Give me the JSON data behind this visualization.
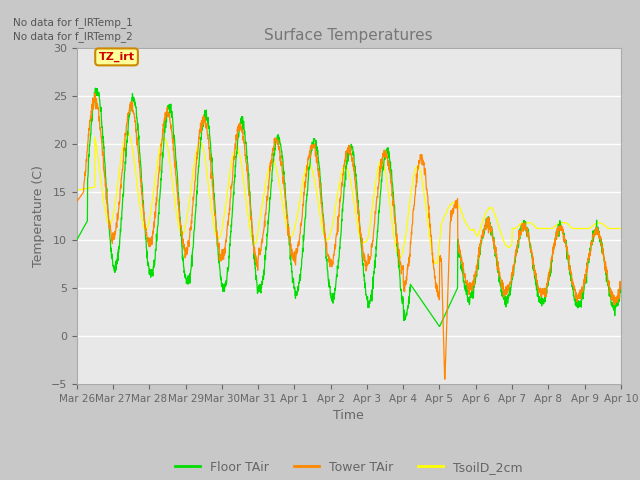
{
  "title": "Surface Temperatures",
  "xlabel": "Time",
  "ylabel": "Temperature (C)",
  "ylim": [
    -5,
    30
  ],
  "yticks": [
    -5,
    0,
    5,
    10,
    15,
    20,
    25,
    30
  ],
  "x_labels": [
    "Mar 26",
    "Mar 27",
    "Mar 28",
    "Mar 29",
    "Mar 30",
    "Mar 31",
    "Apr 1",
    "Apr 2",
    "Apr 3",
    "Apr 4",
    "Apr 5",
    "Apr 6",
    "Apr 7",
    "Apr 8",
    "Apr 9",
    "Apr 10"
  ],
  "no_data_text_1": "No data for f_IRTemp_1",
  "no_data_text_2": "No data for f_IRTemp_2",
  "tz_label": "TZ_irt",
  "legend": [
    {
      "label": "Floor TAir",
      "color": "#00dd00"
    },
    {
      "label": "Tower TAir",
      "color": "#ff8800"
    },
    {
      "label": "TsoilD_2cm",
      "color": "#ffff00"
    }
  ],
  "fig_bg_color": "#c8c8c8",
  "plot_bg_color": "#e8e8e8",
  "grid_color": "#ffffff",
  "title_color": "#777777",
  "label_color": "#666666",
  "tick_color": "#666666"
}
